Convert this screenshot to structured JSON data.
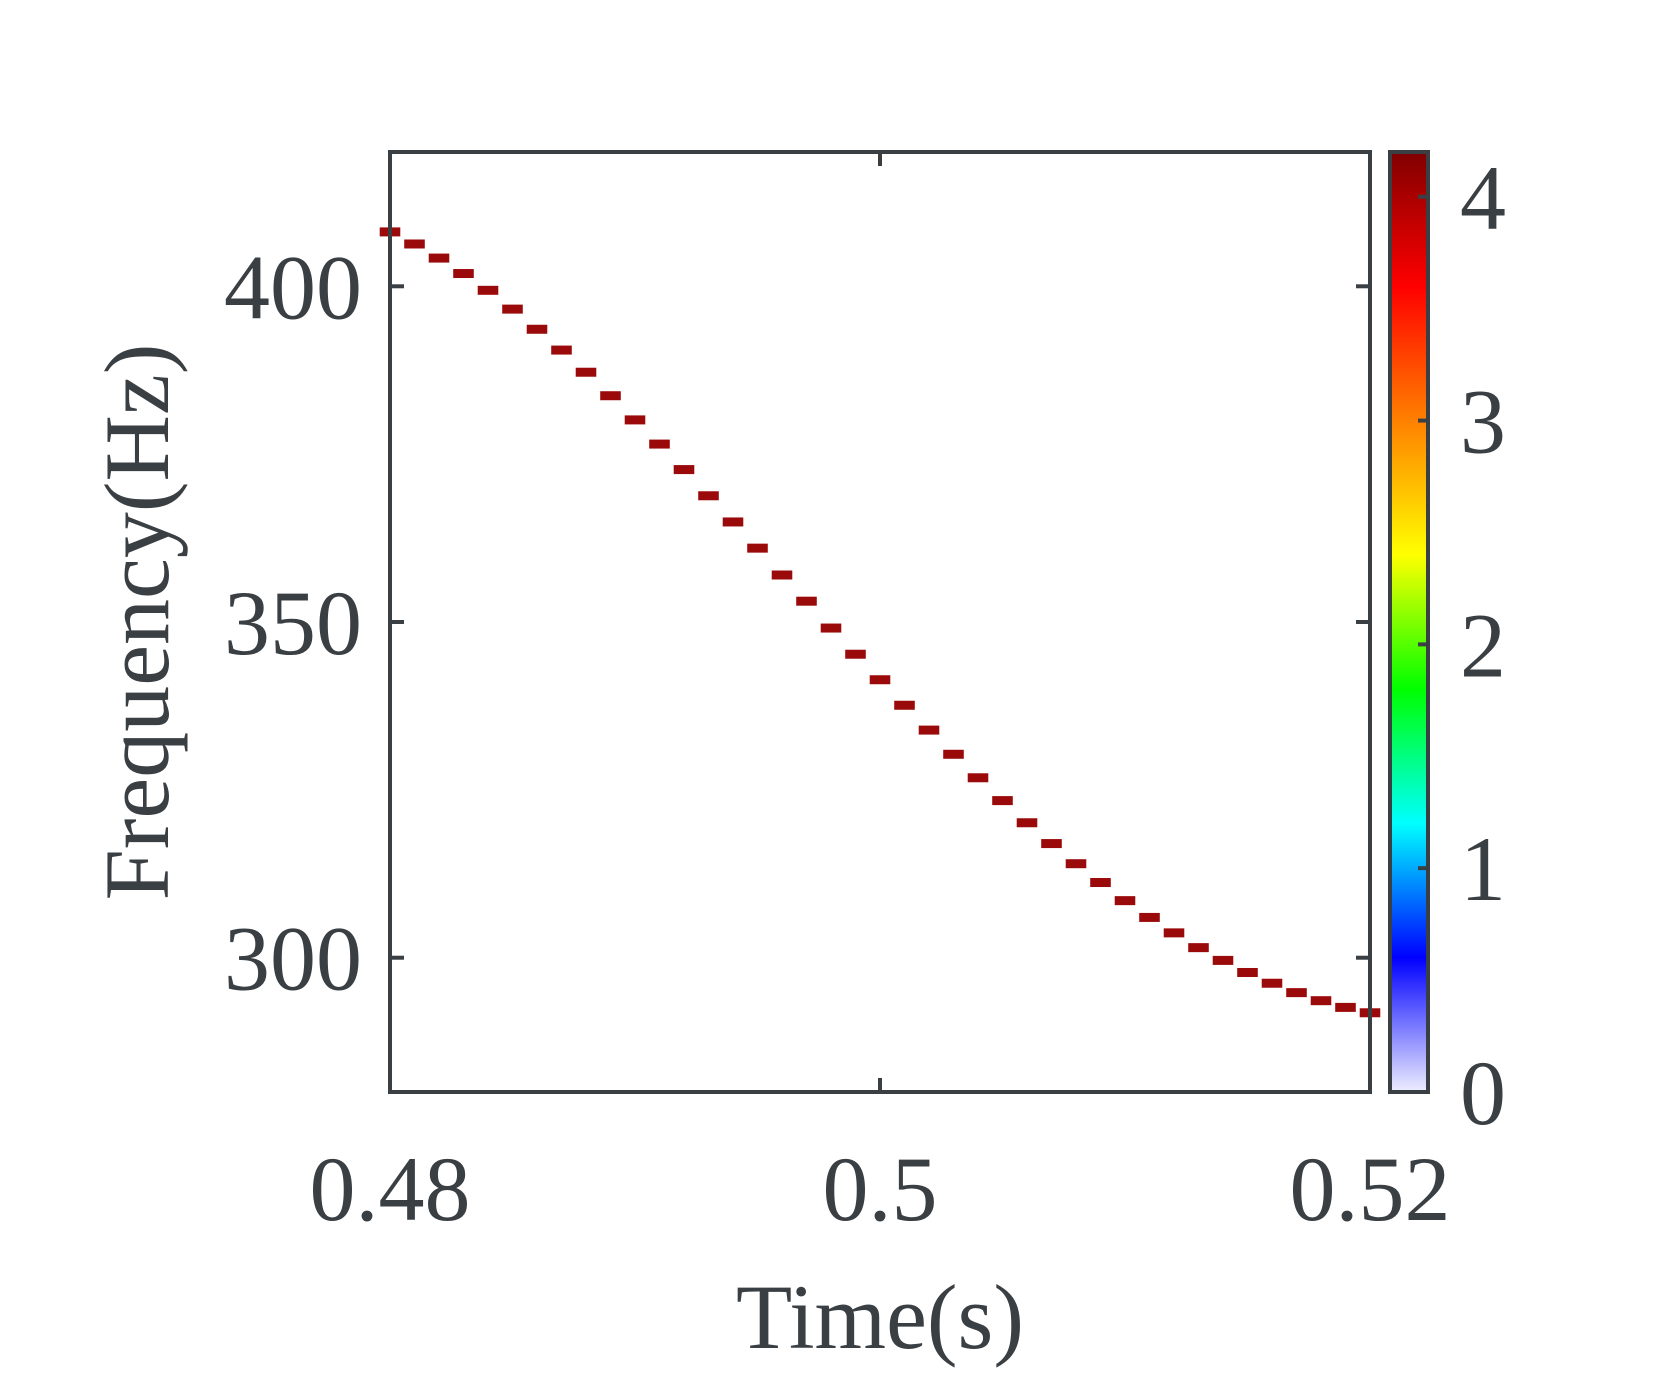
{
  "chart_data": {
    "type": "heatmap",
    "title": "",
    "xlabel": "Time(s)",
    "ylabel": "Frequency(Hz)",
    "xlim": [
      0.48,
      0.52
    ],
    "ylim": [
      280,
      420
    ],
    "x_ticks": [
      0.48,
      0.5,
      0.52
    ],
    "x_tick_labels": [
      "0.48",
      "0.5",
      "0.52"
    ],
    "y_ticks": [
      300,
      350,
      400
    ],
    "y_tick_labels": [
      "300",
      "350",
      "400"
    ],
    "colorbar": {
      "ticks": [
        0,
        1,
        2,
        3,
        4
      ],
      "tick_labels": [
        "0",
        "1",
        "2",
        "3",
        "4"
      ],
      "range": [
        0,
        4.2
      ],
      "colormap": [
        "#eeeeff",
        "#0000ff",
        "#00ffff",
        "#00ff00",
        "#ffff00",
        "#ff8000",
        "#ff0000",
        "#800000"
      ]
    },
    "ridge": {
      "color": "#9b0a0a",
      "value": 4.2,
      "x": [
        0.48,
        0.481,
        0.482,
        0.483,
        0.484,
        0.485,
        0.486,
        0.487,
        0.488,
        0.489,
        0.49,
        0.491,
        0.492,
        0.493,
        0.494,
        0.495,
        0.496,
        0.497,
        0.498,
        0.499,
        0.5,
        0.501,
        0.502,
        0.503,
        0.504,
        0.505,
        0.506,
        0.507,
        0.508,
        0.509,
        0.51,
        0.511,
        0.512,
        0.513,
        0.514,
        0.515,
        0.516,
        0.517,
        0.518,
        0.519,
        0.52
      ],
      "y": [
        408.1,
        406.3,
        404.2,
        401.9,
        399.4,
        396.6,
        393.6,
        390.5,
        387.2,
        383.7,
        380.1,
        376.5,
        372.7,
        368.8,
        364.9,
        361.0,
        357.0,
        353.1,
        349.1,
        345.2,
        341.4,
        337.6,
        333.9,
        330.3,
        326.8,
        323.4,
        320.1,
        317.0,
        314.0,
        311.2,
        308.5,
        306.0,
        303.7,
        301.5,
        299.6,
        297.8,
        296.2,
        294.8,
        293.6,
        292.6,
        291.8
      ]
    }
  }
}
